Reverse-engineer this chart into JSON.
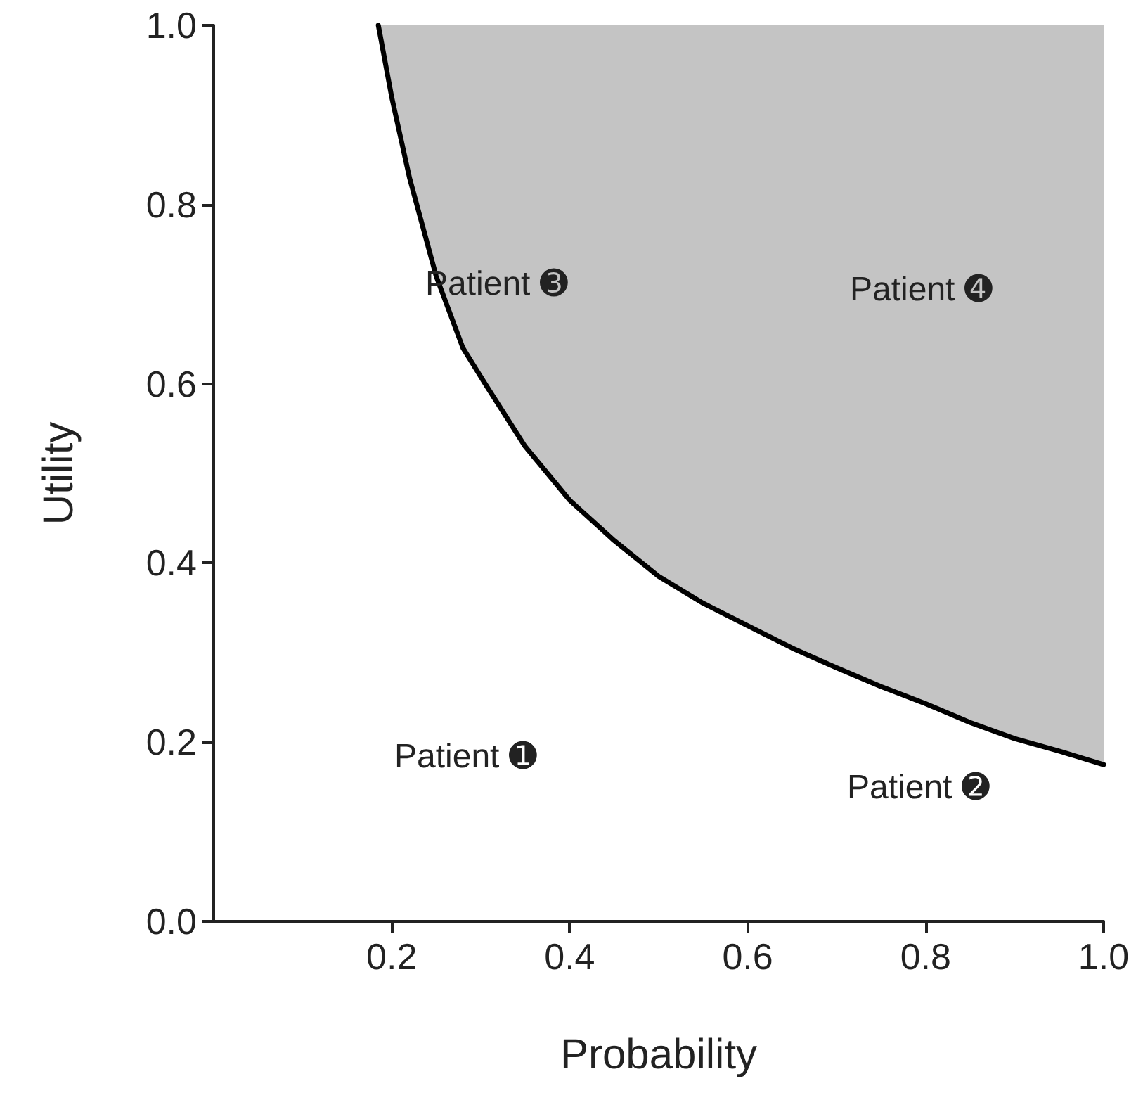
{
  "chart_data": {
    "type": "line",
    "xlabel": "Probability",
    "ylabel": "Utility",
    "series": [
      {
        "color": "#000000",
        "x": [
          0.185,
          0.2,
          0.22,
          0.25,
          0.28,
          0.305,
          0.35,
          0.4,
          0.45,
          0.5,
          0.55,
          0.6,
          0.65,
          0.7,
          0.75,
          0.8,
          0.85,
          0.9,
          0.95,
          1.0
        ],
        "values": [
          1.0,
          0.92,
          0.83,
          0.72,
          0.64,
          0.6,
          0.53,
          0.47,
          0.425,
          0.385,
          0.355,
          0.33,
          0.305,
          0.283,
          0.262,
          0.243,
          0.222,
          0.204,
          0.19,
          0.175
        ],
        "lower": [
          1.0,
          0.92,
          0.83,
          0.72,
          0.64,
          0.6,
          0.53,
          0.47,
          0.425,
          0.385,
          0.355,
          0.33,
          0.305,
          0.283,
          0.262,
          0.243,
          0.222,
          0.204,
          0.19,
          0.175
        ],
        "upper": [
          1.0,
          1.0,
          1.0,
          1.0,
          1.0,
          1.0,
          1.0,
          1.0,
          1.0,
          1.0,
          1.0,
          1.0,
          1.0,
          1.0,
          1.0,
          1.0,
          1.0,
          1.0,
          1.0,
          1.0
        ]
      }
    ],
    "xlim": [
      0,
      1
    ],
    "xticks": [
      0.2,
      0.4,
      0.6,
      0.8,
      {
        "value": 1,
        "label": "1.0"
      }
    ],
    "ylim": [
      0,
      1
    ],
    "yticks": [
      {
        "value": 0,
        "label": "0.0"
      },
      0.2,
      0.4,
      0.6,
      0.8,
      {
        "value": 1,
        "label": "1.0"
      }
    ],
    "grid": false,
    "marker": "none",
    "line_style": "solid",
    "annotations": [
      "Patient ➊",
      "Patient ➋",
      "Patient ➌",
      "Patient ➍"
    ]
  }
}
